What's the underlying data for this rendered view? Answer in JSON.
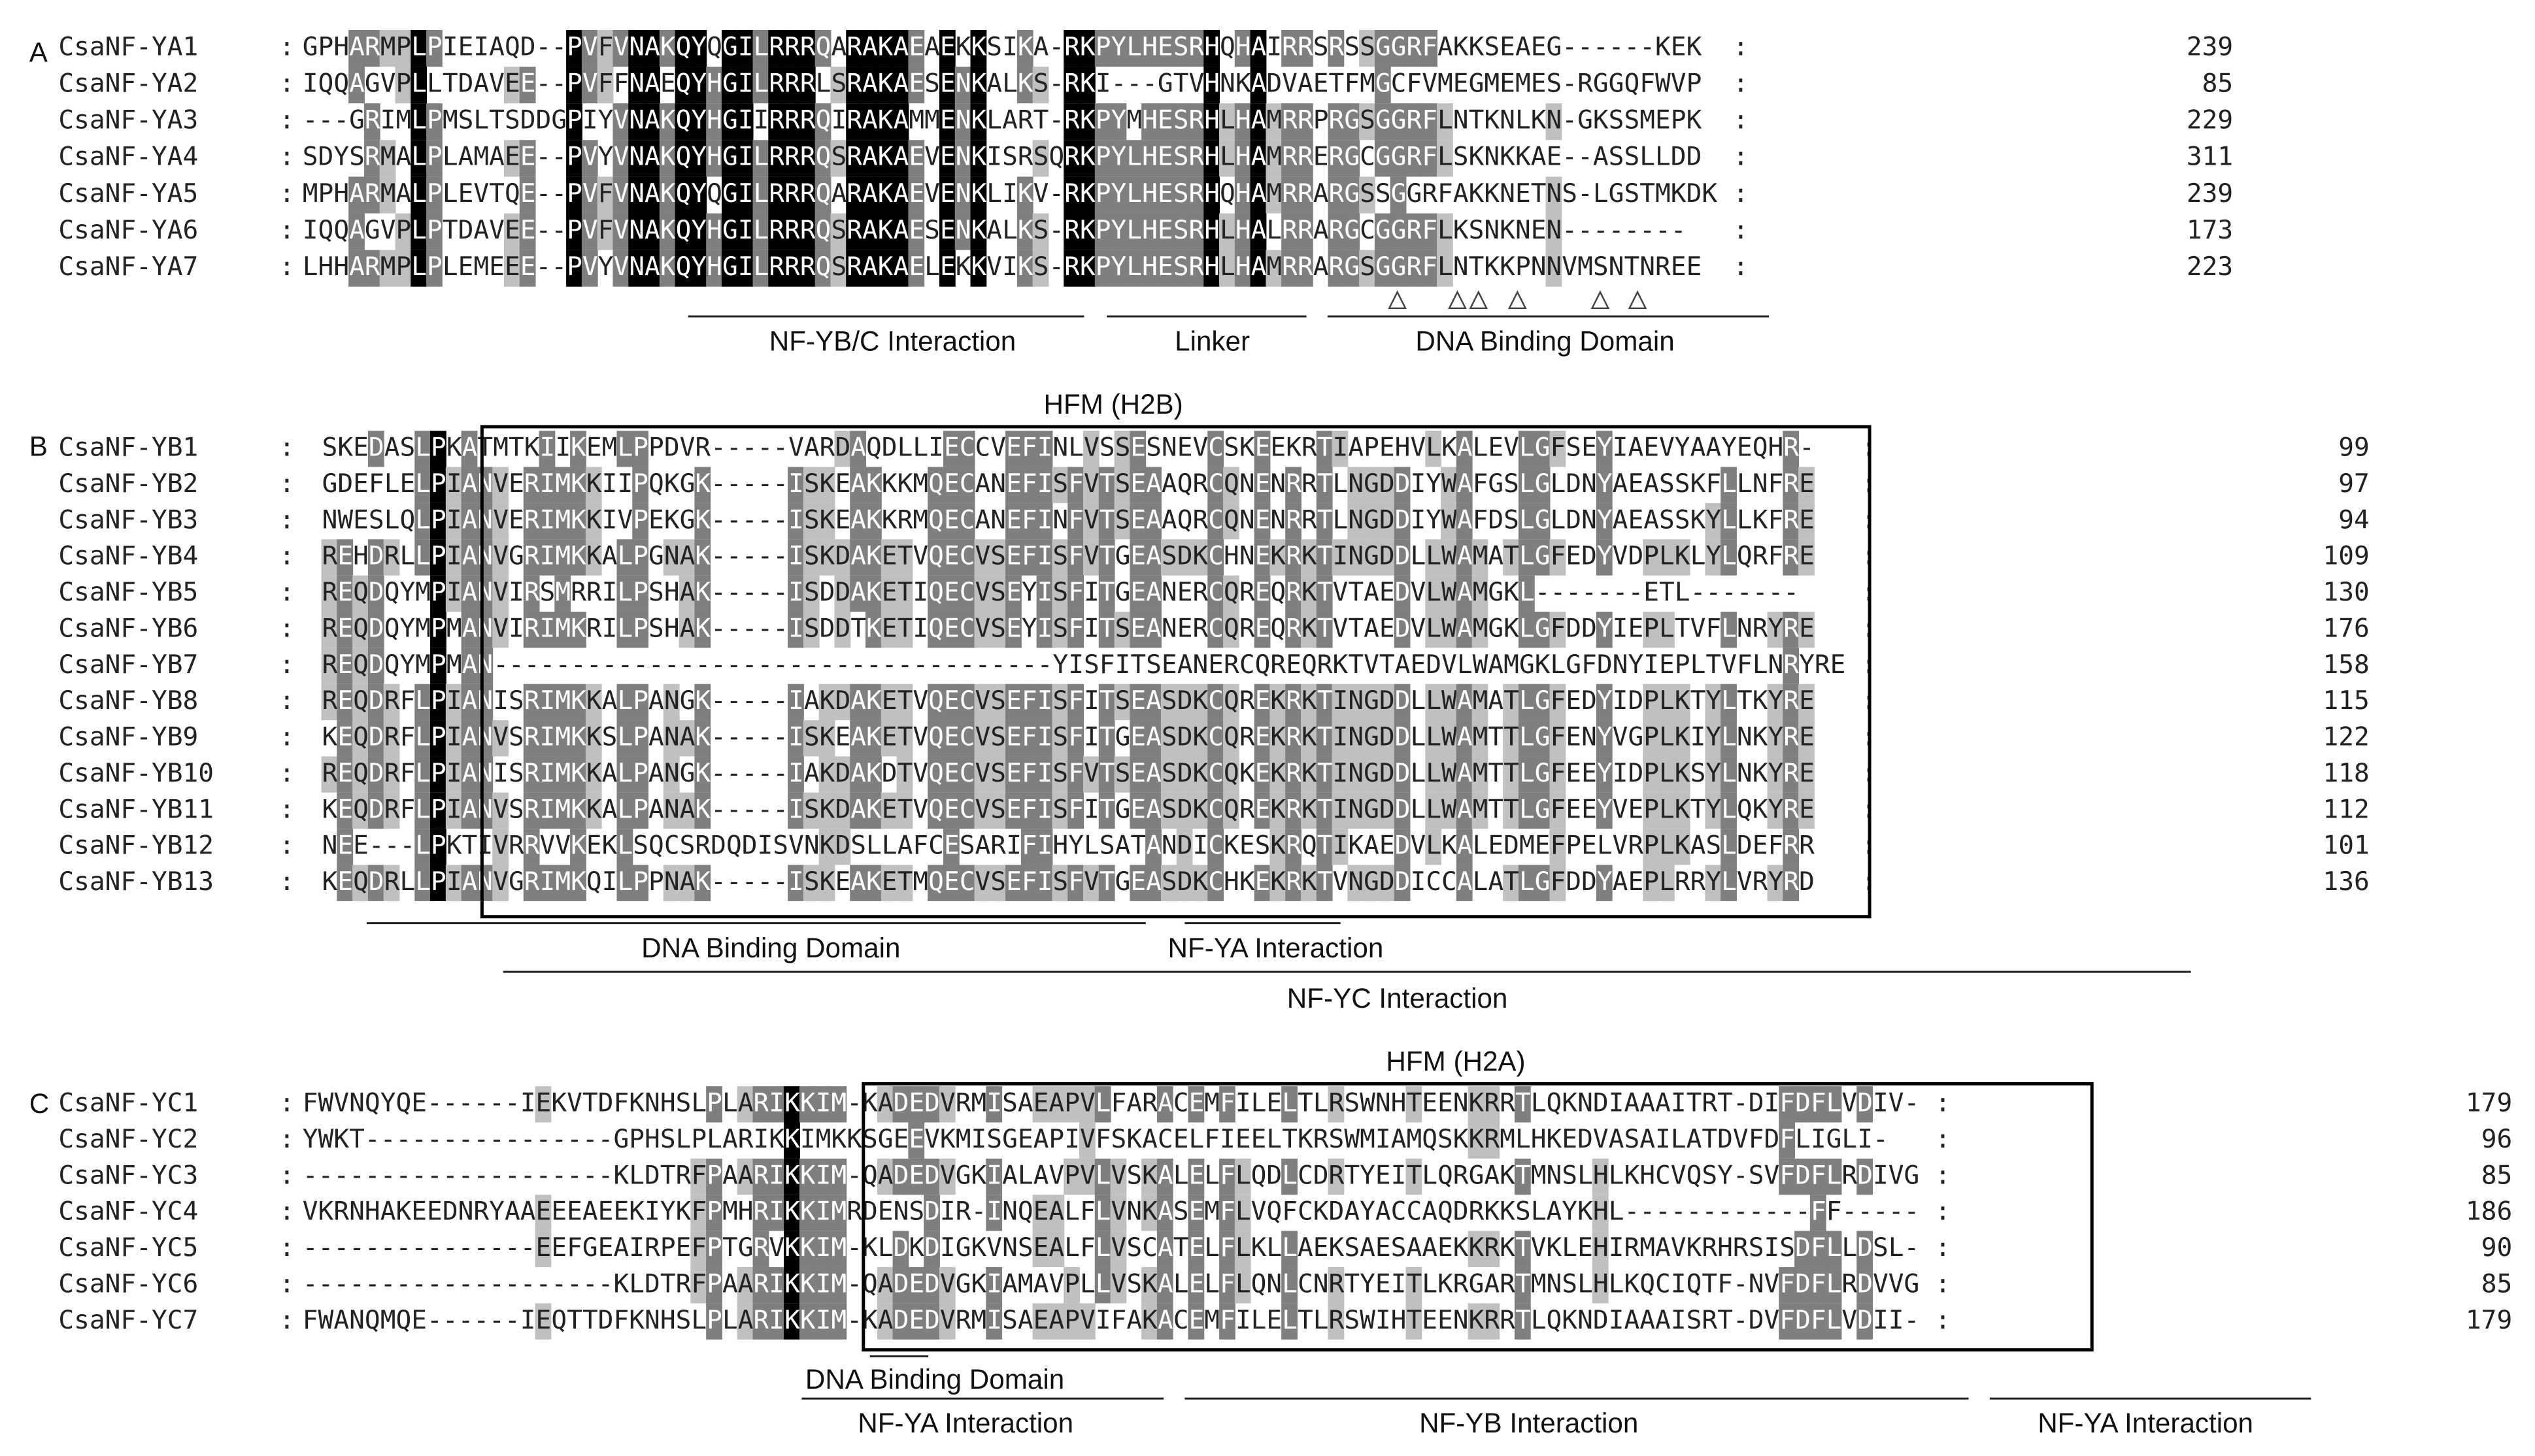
{
  "panels": [
    {
      "letter": "A",
      "hfm_label": "",
      "rows": [
        {
          "name": "CsaNF-YA1",
          "seq": "GPHARMPLPIEIAQD--PVFVNAKQYQGILRRRQARAKAEAEKKSIKA-RKPYLHESRHQHAIRRSRSSGGRFAKKSEAEG------KEK",
          "end": "239"
        },
        {
          "name": "CsaNF-YA2",
          "seq": "IQQAGVPLLTDAVEE--PVFFNAEQYHGILRRRLSRAKAESENKALKS-RKI---GTVHNKADVAETFMGCFVMEGMEMES-RGGQFWVP",
          "end": "85"
        },
        {
          "name": "CsaNF-YA3",
          "seq": "---GRIMLPMSLTSDDGPIYVNAKQYHGIIRRRQIRAKAMMENKLART-RKPYMHESRHLHAMRRPRGSGGRFLNTKNLKN-GKSSMEPK",
          "end": "229"
        },
        {
          "name": "CsaNF-YA4",
          "seq": "SDYSRMALPLAMAEE--PVYVNAKQYHGILRRRQSRAKAEVENKISRSQRKPYLHESRHLHAMRRERGCGGRFLSKNKKAE--ASSLLDD",
          "end": "311"
        },
        {
          "name": "CsaNF-YA5",
          "seq": "MPHARMALPLEVTQE--PVFVNAKQYQGILRRRQARAKAEVENKLIKV-RKPYLHESRHQHAMRRARGSSGGRFAKKNETNS-LGSTMKDK",
          "end": "239"
        },
        {
          "name": "CsaNF-YA6",
          "seq": "IQQAGVPLPTDAVEE--PVFVNAKQYHGILRRRQSRAKAESENKALKS-RKPYLHESRHLHALRRARGCGGRFLKSNKNEN--------",
          "end": "173"
        },
        {
          "name": "CsaNF-YA7",
          "seq": "LHHARMPLPLEMEEE--PVYVNAKQYHGILRRRQSRAKAELEKKVIKS-RKPYLHESRHLHAMRRARGSGGRFLNTKKPNNVMSNTNREE",
          "end": "223"
        }
      ],
      "annotations": [
        "NF-YB/C Interaction",
        "Linker",
        "DNA Binding Domain"
      ]
    },
    {
      "letter": "B",
      "hfm_label": "HFM (H2B)",
      "rows": [
        {
          "name": "CsaNF-YB1",
          "seq": "SKEDASLPKATMTKIIKEMLPPDVR-----VARDAQDLLIECCVEFINLVSSESNEVCSKEEKRTIAPEHVLKALEVLGFSEYIAEVYAAYEQHR-",
          "end": "99"
        },
        {
          "name": "CsaNF-YB2",
          "seq": "GDEFLELPIANVERIMKKIIPQKGK-----ISKEAKKKMQECANEFISFVTSEAAQRCQNENRRTLNGDDIYWAFGSLGLDNYAEASSKFLLNFRE",
          "end": "97"
        },
        {
          "name": "CsaNF-YB3",
          "seq": "NWESLQLPIANVERIMKKIVPEKGK-----ISKEAKKRMQECANEFINFVTSEAAQRCQNENRRTLNGDDIYWAFDSLGLDNYAEASSKYLLKFRE",
          "end": "94"
        },
        {
          "name": "CsaNF-YB4",
          "seq": "REHDRLLPIANVGRIMKKALPGNAK-----ISKDAKETVQECVSEFISFVTGEASDKCHNEKRKTINGDDLLWAMATLGFEDYVDPLKLYLQRFRE",
          "end": "109"
        },
        {
          "name": "CsaNF-YB5",
          "seq": "REQDQYMPIANVIRSMRRILPSHAK-----ISDDAKETIQECVSEYISFITGEANERCQREQRKTVTAEDVLWAMGKL-------ETL-------",
          "end": "130"
        },
        {
          "name": "CsaNF-YB6",
          "seq": "REQDQYMPMANVIRIMKRILPSHAK-----ISDDTKETIQECVSEYISFITSEANERCQREQRKTVTAEDVLWAMGKLGFDDYIEPLTVFLNRYRE",
          "end": "176"
        },
        {
          "name": "CsaNF-YB7",
          "seq": "REQDQYMPMAN------------------------------------YISFITSEANERCQREQRKTVTAEDVLWAMGKLGFDNYIEPLTVFLNRYRE",
          "end": "158"
        },
        {
          "name": "CsaNF-YB8",
          "seq": "REQDRFLPIANISRIMKKALPANGK-----IAKDAKETVQECVSEFISFITSEASDKCQREKRKTINGDDLLWAMATLGFEDYIDPLKTYLTKYRE",
          "end": "115"
        },
        {
          "name": "CsaNF-YB9",
          "seq": "KEQDRFLPIANVSRIMKKSLPANAK-----ISKEAKETVQECVSEFISFITGEASDKCQREKRKTINGDDLLWAMTTLGFENYVGPLKIYLNKYRE",
          "end": "122"
        },
        {
          "name": "CsaNF-YB10",
          "seq": "REQDRFLPIANISRIMKKALPANGK-----IAKDAKDTVQECVSEFISFVTSEASDKCQKEKRKTINGDDLLWAMTTLGFEEYIDPLKSYLNKYRE",
          "end": "118"
        },
        {
          "name": "CsaNF-YB11",
          "seq": "KEQDRFLPIANVSRIMKKALPANAK-----ISKDAKETVQECVSEFISFITGEASDKCQREKRKTINGDDLLWAMTTLGFEEYVEPLKTYLQKYRE",
          "end": "112"
        },
        {
          "name": "CsaNF-YB12",
          "seq": "NEE---LPKTIVRRVVKEKLSQCSRDQDISVNKDSLLAFCESARIFIHYLSATANDICKESKRQTIKAEDVLKALEDMEFPELVRPLKASLDEFRR",
          "end": "101"
        },
        {
          "name": "CsaNF-YB13",
          "seq": "KEQDRLLPIANVGRIMKQILPPNAK-----ISKEAKETMQECVSEFISFVTGEASDKCHKEKRKTVNGDDICCALATLGFDDYAEPLRRYLVRYRD",
          "end": "136"
        }
      ],
      "annotations": [
        "DNA Binding Domain",
        "NF-YA Interaction",
        "NF-YC Interaction"
      ]
    },
    {
      "letter": "C",
      "hfm_label": "HFM (H2A)",
      "rows": [
        {
          "name": "CsaNF-YC1",
          "seq": "FWVNQYQE------IEKVTDFKNHSLPLARIKKIM-KADEDVRMISAEAPVLFARACEMFILELTLRSWNHTEENKRRTLQKNDIAAAITRT-DIFDFLVDIV-",
          "end": "179"
        },
        {
          "name": "CsaNF-YC2",
          "seq": "YWKT----------------GPHSLPLARIKKIMKKSGEEVKMISGEAPIVFSKACELFIEELTKRSWMIAMQSKKRMLHKEDVASAILATDVFDFLIGLI-",
          "end": "96"
        },
        {
          "name": "CsaNF-YC3",
          "seq": "--------------------KLDTRFPAARIKKIM-QADEDVGKIALAVPVLVSKALELFLQDLCDRTYEITLQRGAKTMNSLHLKHCVQSY-SVFDFLRDIVG",
          "end": "85"
        },
        {
          "name": "CsaNF-YC4",
          "seq": "VKRNHAKEEDNRYAAEEEAEEKIYKFPMHRIKKIMRDENSDIR-INQEALFLVNKASEMFLVQFCKDAYACCAQDRKKSLAYKHL------------FF-----",
          "end": "186"
        },
        {
          "name": "CsaNF-YC5",
          "seq": "---------------EEFGEAIRPEFPTGRVKKIM-KLDKDIGKVNSEALFLVSCATELFLKLLAEKSAESAAEKKRKTVKLEHIRMAVKRHRSISDFLLDSL-",
          "end": "90"
        },
        {
          "name": "CsaNF-YC6",
          "seq": "--------------------KLDTRFPAARIKKIM-QADEDVGKIAMAVPLLVSKALELFLQNLCNRTYEITLKRGARTMNSLHLKQCIQTF-NVFDFLRDVVG",
          "end": "85"
        },
        {
          "name": "CsaNF-YC7",
          "seq": "FWANQMQE------IEQTTDFKNHSLPLARIKKIM-KADEDVRMISAEAPVIFAKACEMFILELTLRSWIHTEENKRRTLQKNDIAAAISRT-DVFDFLVDII-",
          "end": "179"
        }
      ],
      "annotations": [
        "DNA Binding Domain",
        "NF-YA Interaction",
        "NF-YB Interaction",
        "NF-YA Interaction"
      ]
    }
  ],
  "colors": {
    "conserved_100": "#000000",
    "conserved_80": "#7f7f7f",
    "conserved_60": "#c0c0c0",
    "text_on_dark": "#ffffff",
    "text_on_light": "#222222"
  }
}
